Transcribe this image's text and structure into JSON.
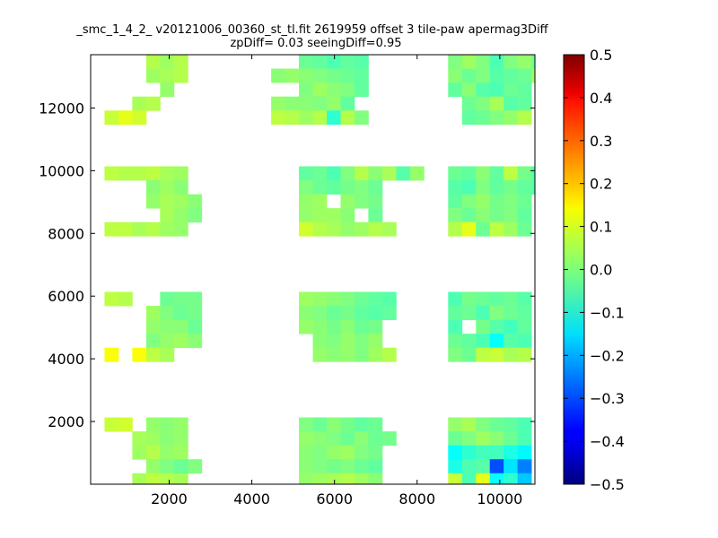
{
  "chart_data": {
    "type": "heatmap",
    "title": "_smc_1_4_2_ v20121006_00360_st_tl.fit 2619959 offset 3 tile-paw apermag3Diff",
    "subtitle": "zpDiff= 0.03 seeingDiff=0.95",
    "xlabel": "",
    "ylabel": "",
    "xlim": [
      100,
      10850
    ],
    "ylim": [
      0,
      13700
    ],
    "x_ticks": [
      2000,
      4000,
      6000,
      8000,
      10000
    ],
    "x_tick_labels": [
      "2000",
      "4000",
      "6000",
      "8000",
      "10000"
    ],
    "y_ticks": [
      2000,
      4000,
      6000,
      8000,
      10000,
      12000
    ],
    "y_tick_labels": [
      "2000",
      "4000",
      "6000",
      "8000",
      "10000",
      "12000"
    ],
    "colorbar": {
      "min": -0.5,
      "max": 0.5,
      "ticks": [
        0.5,
        0.4,
        0.3,
        0.2,
        0.1,
        0.0,
        -0.1,
        -0.2,
        -0.3,
        -0.4,
        -0.5
      ],
      "tick_labels": [
        "0.5",
        "0.4",
        "0.3",
        "0.2",
        "0.1",
        "0.0",
        "−0.1",
        "−0.2",
        "−0.3",
        "−0.4",
        "−0.5"
      ]
    },
    "grid": false,
    "cell_size_x": 336,
    "cell_size_y": 445,
    "n_columns": 32,
    "row_start_y": [
      13700,
      13255,
      12810,
      12365,
      11920,
      10140,
      9695,
      9250,
      8805,
      8360,
      6135,
      5690,
      5245,
      4800,
      4355,
      2130,
      1685,
      1240,
      795,
      350
    ],
    "row_values": [
      [
        null,
        null,
        null,
        null,
        0.05,
        0.03,
        0.05,
        null,
        null,
        null,
        null,
        null,
        null,
        null,
        null,
        -0.02,
        -0.03,
        -0.05,
        -0.03,
        -0.04,
        null,
        null,
        null,
        null,
        null,
        null,
        null,
        null,
        null,
        null,
        null,
        null
      ],
      [
        null,
        null,
        null,
        null,
        0.03,
        0.04,
        0.05,
        null,
        null,
        null,
        null,
        null,
        null,
        0.01,
        0.02,
        0.01,
        0.0,
        -0.01,
        -0.02,
        -0.03,
        null,
        null,
        null,
        null,
        null,
        null,
        null,
        null,
        null,
        null,
        null,
        null
      ],
      [
        null,
        null,
        null,
        null,
        null,
        0.02,
        null,
        null,
        null,
        null,
        null,
        null,
        null,
        null,
        null,
        0.0,
        0.03,
        0.01,
        0.0,
        -0.03,
        null,
        null,
        null,
        null,
        null,
        null,
        null,
        null,
        null,
        null,
        null,
        null
      ],
      [
        null,
        null,
        null,
        0.04,
        0.05,
        null,
        null,
        null,
        null,
        null,
        null,
        null,
        null,
        0.02,
        0.01,
        0.01,
        0.0,
        0.02,
        -0.03,
        null,
        null,
        null,
        null,
        null,
        null,
        null,
        null,
        null,
        null,
        null,
        null,
        null
      ],
      [
        null,
        0.07,
        0.1,
        0.08,
        null,
        null,
        null,
        null,
        null,
        null,
        null,
        null,
        null,
        0.06,
        0.05,
        0.03,
        0.05,
        -0.08,
        0.05,
        0.0,
        null,
        null,
        null,
        null,
        null,
        null,
        null,
        null,
        null,
        null,
        null,
        null
      ],
      [
        null,
        0.06,
        0.05,
        0.05,
        0.06,
        0.04,
        0.03,
        null,
        null,
        null,
        null,
        null,
        null,
        null,
        null,
        -0.03,
        -0.02,
        -0.05,
        0.0,
        0.05,
        0.01,
        0.04,
        -0.04,
        0.02,
        null,
        null,
        null,
        null,
        null,
        null,
        null,
        null
      ],
      [
        null,
        null,
        null,
        null,
        0.01,
        0.03,
        0.01,
        null,
        null,
        null,
        null,
        null,
        null,
        null,
        null,
        0.0,
        -0.02,
        -0.03,
        -0.01,
        0.0,
        -0.02,
        null,
        null,
        null,
        null,
        null,
        null,
        null,
        null,
        null,
        null,
        null
      ],
      [
        null,
        null,
        null,
        null,
        0.02,
        0.04,
        0.03,
        0.01,
        null,
        null,
        null,
        null,
        null,
        null,
        null,
        0.02,
        0.03,
        null,
        0.02,
        0.0,
        -0.01,
        null,
        null,
        null,
        null,
        null,
        null,
        null,
        null,
        null,
        null,
        null
      ],
      [
        null,
        null,
        null,
        null,
        null,
        0.04,
        0.02,
        0.0,
        null,
        null,
        null,
        null,
        null,
        null,
        null,
        0.02,
        0.03,
        0.03,
        0.01,
        null,
        -0.02,
        null,
        null,
        null,
        null,
        null,
        null,
        null,
        null,
        null,
        null,
        null
      ],
      [
        null,
        0.06,
        0.06,
        0.04,
        0.05,
        0.03,
        0.02,
        null,
        null,
        null,
        null,
        null,
        null,
        null,
        null,
        0.08,
        0.05,
        0.04,
        0.02,
        0.03,
        0.05,
        0.04,
        null,
        null,
        null,
        null,
        null,
        null,
        null,
        null,
        null,
        null
      ],
      [
        null,
        0.06,
        0.05,
        null,
        null,
        -0.02,
        -0.01,
        -0.01,
        null,
        null,
        null,
        null,
        null,
        null,
        null,
        0.03,
        0.02,
        0.01,
        0.0,
        -0.02,
        -0.03,
        -0.04,
        null,
        null,
        null,
        null,
        null,
        null,
        null,
        null,
        null,
        null
      ],
      [
        null,
        null,
        null,
        null,
        0.03,
        0.0,
        -0.02,
        -0.01,
        null,
        null,
        null,
        null,
        null,
        null,
        null,
        0.01,
        0.0,
        -0.02,
        -0.01,
        -0.03,
        -0.04,
        -0.03,
        null,
        null,
        null,
        null,
        null,
        null,
        null,
        null,
        null,
        null
      ],
      [
        null,
        null,
        null,
        null,
        0.02,
        0.01,
        0.01,
        -0.02,
        null,
        null,
        null,
        null,
        null,
        null,
        null,
        0.02,
        0.01,
        -0.01,
        0.01,
        -0.02,
        -0.01,
        null,
        null,
        null,
        null,
        null,
        null,
        null,
        null,
        null,
        null,
        null
      ],
      [
        null,
        null,
        null,
        null,
        0.0,
        0.02,
        0.03,
        0.01,
        null,
        null,
        null,
        null,
        null,
        null,
        null,
        null,
        0.01,
        0.0,
        0.02,
        0.0,
        0.02,
        null,
        null,
        null,
        null,
        null,
        null,
        null,
        null,
        null,
        null,
        null
      ],
      [
        null,
        0.12,
        null,
        0.12,
        0.06,
        0.04,
        null,
        null,
        null,
        null,
        null,
        null,
        null,
        null,
        null,
        null,
        0.02,
        0.01,
        0.02,
        0.0,
        0.03,
        0.05,
        null,
        null,
        null,
        null,
        null,
        null,
        null,
        null,
        null,
        null
      ],
      [
        null,
        0.07,
        0.08,
        null,
        0.02,
        0.01,
        0.02,
        null,
        null,
        null,
        null,
        null,
        null,
        null,
        null,
        0.0,
        -0.02,
        0.01,
        -0.01,
        -0.03,
        -0.02,
        null,
        null,
        null,
        null,
        null,
        null,
        null,
        null,
        null,
        null,
        null
      ],
      [
        null,
        null,
        null,
        0.04,
        0.03,
        0.01,
        0.02,
        null,
        null,
        null,
        null,
        null,
        null,
        null,
        null,
        0.02,
        0.01,
        0.0,
        -0.02,
        0.01,
        -0.02,
        -0.01,
        null,
        null,
        null,
        null,
        null,
        null,
        null,
        null,
        null,
        null
      ],
      [
        null,
        null,
        null,
        0.03,
        0.05,
        0.02,
        0.03,
        null,
        null,
        null,
        null,
        null,
        null,
        null,
        null,
        0.01,
        0.0,
        0.02,
        0.03,
        0.0,
        -0.01,
        null,
        null,
        null,
        null,
        null,
        null,
        null,
        null,
        null,
        null,
        null
      ],
      [
        null,
        null,
        null,
        null,
        0.02,
        0.0,
        -0.02,
        0.0,
        null,
        null,
        null,
        null,
        null,
        null,
        null,
        0.01,
        0.0,
        -0.01,
        0.0,
        -0.02,
        -0.03,
        null,
        null,
        null,
        null,
        null,
        null,
        null,
        null,
        null,
        null,
        null
      ],
      [
        null,
        null,
        null,
        0.04,
        0.06,
        0.05,
        0.04,
        null,
        null,
        null,
        null,
        null,
        null,
        null,
        null,
        0.02,
        0.03,
        0.04,
        0.05,
        0.03,
        0.01,
        null,
        null,
        null,
        null,
        null,
        null,
        null,
        null,
        null,
        null,
        null
      ]
    ],
    "right_block_values": [
      [
        0.0,
        0.03,
        0.0,
        -0.05,
        0.0,
        0.02,
        -0.02,
        -0.05,
        -0.08,
        -0.04,
        null,
        null,
        null,
        null,
        null,
        null
      ],
      [
        0.01,
        -0.02,
        0.0,
        -0.04,
        -0.03,
        -0.02,
        0.03,
        -0.06,
        -0.07,
        null,
        null,
        null,
        null,
        null,
        null,
        null
      ],
      [
        -0.03,
        0.01,
        -0.04,
        -0.05,
        -0.02,
        -0.03,
        null,
        null,
        null,
        null,
        null,
        null,
        null,
        null,
        null,
        null
      ],
      [
        null,
        -0.02,
        0.0,
        0.04,
        -0.04,
        -0.03,
        null,
        -0.05,
        null,
        null,
        null,
        null,
        null,
        null,
        null,
        null
      ],
      [
        null,
        -0.03,
        -0.02,
        0.0,
        0.02,
        0.05,
        null,
        null,
        null,
        null,
        null,
        null,
        null,
        null,
        null,
        null
      ],
      [
        -0.02,
        -0.03,
        0.01,
        -0.03,
        0.06,
        -0.01,
        -0.05,
        null,
        null,
        null,
        null,
        null,
        null,
        null,
        null,
        null
      ],
      [
        -0.04,
        -0.05,
        0.0,
        -0.03,
        -0.01,
        -0.03,
        -0.04,
        null,
        null,
        null,
        null,
        null,
        null,
        null,
        null,
        null
      ],
      [
        -0.03,
        0.0,
        0.02,
        -0.01,
        0.0,
        -0.02,
        null,
        null,
        null,
        null,
        null,
        null,
        null,
        null,
        null,
        null
      ],
      [
        0.0,
        -0.02,
        0.01,
        -0.01,
        0.0,
        -0.03,
        null,
        null,
        null,
        null,
        null,
        null,
        null,
        null,
        null,
        null
      ],
      [
        0.05,
        0.1,
        -0.02,
        0.06,
        0.03,
        -0.02,
        null,
        null,
        null,
        null,
        null,
        null,
        null,
        null,
        null,
        null
      ],
      [
        -0.05,
        -0.01,
        -0.02,
        -0.03,
        -0.02,
        -0.04,
        null,
        null,
        null,
        null,
        null,
        null,
        null,
        null,
        null,
        null
      ],
      [
        -0.03,
        -0.02,
        -0.05,
        0.0,
        -0.02,
        -0.03,
        null,
        null,
        null,
        null,
        null,
        null,
        null,
        null,
        null,
        null
      ],
      [
        -0.05,
        null,
        -0.01,
        -0.04,
        -0.06,
        -0.03,
        null,
        null,
        null,
        null,
        null,
        null,
        null,
        null,
        null,
        null
      ],
      [
        -0.02,
        -0.03,
        -0.05,
        -0.12,
        -0.04,
        -0.05,
        null,
        null,
        null,
        null,
        null,
        null,
        null,
        null,
        null,
        null
      ],
      [
        0.0,
        -0.02,
        0.06,
        0.07,
        0.04,
        0.05,
        null,
        null,
        null,
        null,
        null,
        null,
        null,
        null,
        null,
        null
      ],
      [
        0.02,
        0.04,
        0.0,
        -0.02,
        -0.03,
        -0.05,
        null,
        null,
        null,
        null,
        null,
        null,
        null,
        null,
        null,
        null
      ],
      [
        -0.02,
        0.0,
        0.03,
        0.01,
        -0.02,
        -0.05,
        null,
        null,
        null,
        null,
        null,
        null,
        null,
        null,
        null,
        null
      ],
      [
        -0.12,
        -0.08,
        -0.06,
        -0.06,
        -0.1,
        -0.13,
        null,
        null,
        null,
        null,
        null,
        null,
        null,
        null,
        null,
        null
      ],
      [
        -0.1,
        -0.05,
        -0.04,
        -0.3,
        -0.15,
        -0.25,
        null,
        null,
        null,
        null,
        null,
        null,
        null,
        null,
        null,
        null
      ],
      [
        0.07,
        -0.05,
        0.1,
        -0.12,
        -0.08,
        -0.18,
        null,
        null,
        null,
        null,
        null,
        null,
        null,
        null,
        null,
        null
      ]
    ],
    "right_block_start_x": 8750
  }
}
